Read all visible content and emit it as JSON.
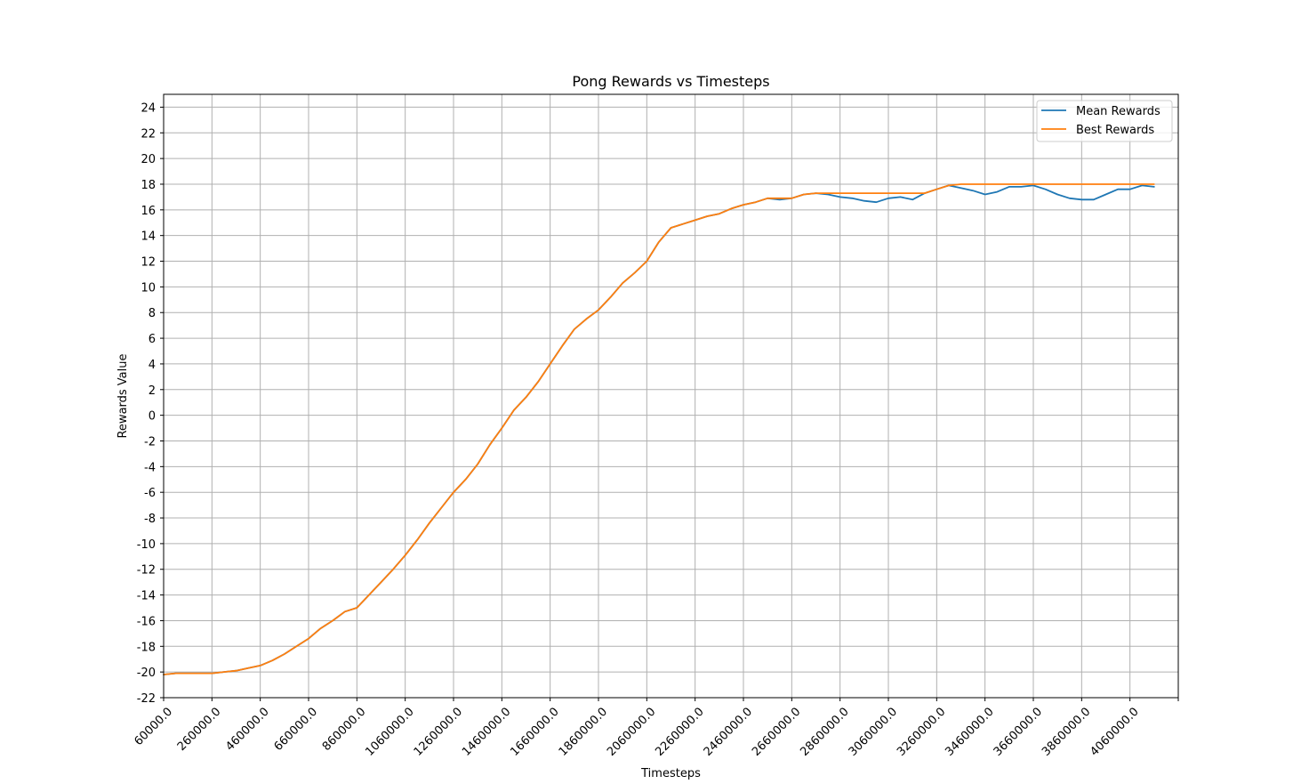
{
  "chart_data": {
    "type": "line",
    "title": "Pong Rewards vs Timesteps",
    "xlabel": "Timesteps",
    "ylabel": "Rewards Value",
    "xlim": [
      60000,
      4260000
    ],
    "ylim": [
      -22,
      25
    ],
    "xticks": [
      60000,
      260000,
      460000,
      660000,
      860000,
      1060000,
      1260000,
      1460000,
      1660000,
      1860000,
      2060000,
      2260000,
      2460000,
      2660000,
      2860000,
      3060000,
      3260000,
      3460000,
      3660000,
      3860000,
      4060000
    ],
    "xtick_labels": [
      "60000.0",
      "260000.0",
      "460000.0",
      "660000.0",
      "860000.0",
      "1060000.0",
      "1260000.0",
      "1460000.0",
      "1660000.0",
      "1860000.0",
      "2060000.0",
      "2260000.0",
      "2460000.0",
      "2660000.0",
      "2860000.0",
      "3060000.0",
      "3260000.0",
      "3460000.0",
      "3660000.0",
      "3860000.0",
      "4060000.0"
    ],
    "yticks": [
      -22,
      -20,
      -18,
      -16,
      -14,
      -12,
      -10,
      -8,
      -6,
      -4,
      -2,
      0,
      2,
      4,
      6,
      8,
      10,
      12,
      14,
      16,
      18,
      20,
      22,
      24
    ],
    "ytick_labels": [
      "-22",
      "-20",
      "-18",
      "-16",
      "-14",
      "-12",
      "-10",
      "-8",
      "-6",
      "-4",
      "-2",
      "0",
      "2",
      "4",
      "6",
      "8",
      "10",
      "12",
      "14",
      "16",
      "18",
      "20",
      "22",
      "24"
    ],
    "grid": true,
    "legend_position": "top-right",
    "series": [
      {
        "name": "Mean Rewards",
        "color": "#1f77b4",
        "x": [
          60000,
          110000,
          160000,
          210000,
          260000,
          310000,
          360000,
          410000,
          460000,
          510000,
          560000,
          610000,
          660000,
          710000,
          760000,
          810000,
          860000,
          910000,
          960000,
          1010000,
          1060000,
          1110000,
          1160000,
          1210000,
          1260000,
          1310000,
          1360000,
          1410000,
          1460000,
          1510000,
          1560000,
          1610000,
          1660000,
          1710000,
          1760000,
          1810000,
          1860000,
          1910000,
          1960000,
          2010000,
          2060000,
          2110000,
          2160000,
          2210000,
          2260000,
          2310000,
          2360000,
          2410000,
          2460000,
          2510000,
          2560000,
          2610000,
          2660000,
          2710000,
          2760000,
          2810000,
          2860000,
          2910000,
          2960000,
          3010000,
          3060000,
          3110000,
          3160000,
          3210000,
          3260000,
          3310000,
          3360000,
          3410000,
          3460000,
          3510000,
          3560000,
          3610000,
          3660000,
          3710000,
          3760000,
          3810000,
          3860000,
          3910000,
          3960000,
          4010000,
          4060000,
          4110000,
          4160000
        ],
        "values": [
          -20.2,
          -20.1,
          -20.1,
          -20.1,
          -20.1,
          -20.0,
          -19.9,
          -19.7,
          -19.5,
          -19.1,
          -18.6,
          -18.0,
          -17.4,
          -16.6,
          -16.0,
          -15.3,
          -15.0,
          -14.0,
          -13.0,
          -12.0,
          -10.9,
          -9.7,
          -8.4,
          -7.2,
          -6.0,
          -5.0,
          -3.8,
          -2.3,
          -1.0,
          0.4,
          1.4,
          2.6,
          4.0,
          5.4,
          6.7,
          7.5,
          8.2,
          9.2,
          10.3,
          11.1,
          12.0,
          13.5,
          14.6,
          14.9,
          15.2,
          15.5,
          15.7,
          16.1,
          16.4,
          16.6,
          16.9,
          16.8,
          16.9,
          17.2,
          17.3,
          17.2,
          17.0,
          16.9,
          16.7,
          16.6,
          16.9,
          17.0,
          16.8,
          17.3,
          17.6,
          17.9,
          17.7,
          17.5,
          17.2,
          17.4,
          17.8,
          17.8,
          17.9,
          17.6,
          17.2,
          16.9,
          16.8,
          16.8,
          17.2,
          17.6,
          17.6,
          17.9,
          17.8
        ]
      },
      {
        "name": "Best Rewards",
        "color": "#ff7f0e",
        "x": [
          60000,
          110000,
          160000,
          210000,
          260000,
          310000,
          360000,
          410000,
          460000,
          510000,
          560000,
          610000,
          660000,
          710000,
          760000,
          810000,
          860000,
          910000,
          960000,
          1010000,
          1060000,
          1110000,
          1160000,
          1210000,
          1260000,
          1310000,
          1360000,
          1410000,
          1460000,
          1510000,
          1560000,
          1610000,
          1660000,
          1710000,
          1760000,
          1810000,
          1860000,
          1910000,
          1960000,
          2010000,
          2060000,
          2110000,
          2160000,
          2210000,
          2260000,
          2310000,
          2360000,
          2410000,
          2460000,
          2510000,
          2560000,
          2610000,
          2660000,
          2710000,
          2760000,
          2810000,
          2860000,
          2910000,
          2960000,
          3010000,
          3060000,
          3110000,
          3160000,
          3210000,
          3260000,
          3310000,
          3360000,
          3410000,
          3460000,
          3510000,
          3560000,
          3610000,
          3660000,
          3710000,
          3760000,
          3810000,
          3860000,
          3910000,
          3960000,
          4010000,
          4060000,
          4110000,
          4160000
        ],
        "values": [
          -20.2,
          -20.1,
          -20.1,
          -20.1,
          -20.1,
          -20.0,
          -19.9,
          -19.7,
          -19.5,
          -19.1,
          -18.6,
          -18.0,
          -17.4,
          -16.6,
          -16.0,
          -15.3,
          -15.0,
          -14.0,
          -13.0,
          -12.0,
          -10.9,
          -9.7,
          -8.4,
          -7.2,
          -6.0,
          -5.0,
          -3.8,
          -2.3,
          -1.0,
          0.4,
          1.4,
          2.6,
          4.0,
          5.4,
          6.7,
          7.5,
          8.2,
          9.2,
          10.3,
          11.1,
          12.0,
          13.5,
          14.6,
          14.9,
          15.2,
          15.5,
          15.7,
          16.1,
          16.4,
          16.6,
          16.9,
          16.9,
          16.9,
          17.2,
          17.3,
          17.3,
          17.3,
          17.3,
          17.3,
          17.3,
          17.3,
          17.3,
          17.3,
          17.3,
          17.6,
          17.9,
          18.0,
          18.0,
          18.0,
          18.0,
          18.0,
          18.0,
          18.0,
          18.0,
          18.0,
          18.0,
          18.0,
          18.0,
          18.0,
          18.0,
          18.0,
          18.0,
          18.0
        ]
      }
    ]
  }
}
